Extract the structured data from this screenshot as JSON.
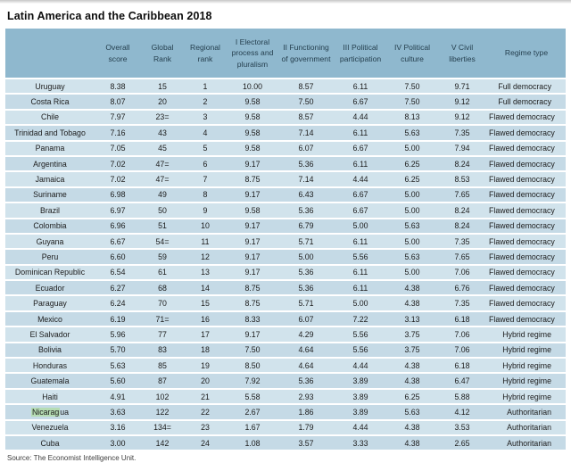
{
  "title": "Latin America and the Caribbean 2018",
  "source": "Source: The Economist Intelligence Unit.",
  "colors": {
    "header_bg": "#8fb8ce",
    "row_light": "#d1e3ec",
    "row_dark": "#c5dae6",
    "highlight_green": "#b5dcb3",
    "header_text": "#253f4e"
  },
  "highlight": {
    "country": "Nicaragua",
    "highlighted_text": "Nicarag"
  },
  "chart_data": {
    "type": "table",
    "columns": [
      "",
      "Overall score",
      "Global Rank",
      "Regional rank",
      "I Electoral process and pluralism",
      "II Functioning of government",
      "III Political participation",
      "IV Political culture",
      "V Civil liberties",
      "Regime type"
    ],
    "rows": [
      [
        "Uruguay",
        "8.38",
        "15",
        "1",
        "10.00",
        "8.57",
        "6.11",
        "7.50",
        "9.71",
        "Full democracy"
      ],
      [
        "Costa Rica",
        "8.07",
        "20",
        "2",
        "9.58",
        "7.50",
        "6.67",
        "7.50",
        "9.12",
        "Full democracy"
      ],
      [
        "Chile",
        "7.97",
        "23=",
        "3",
        "9.58",
        "8.57",
        "4.44",
        "8.13",
        "9.12",
        "Flawed democracy"
      ],
      [
        "Trinidad and Tobago",
        "7.16",
        "43",
        "4",
        "9.58",
        "7.14",
        "6.11",
        "5.63",
        "7.35",
        "Flawed democracy"
      ],
      [
        "Panama",
        "7.05",
        "45",
        "5",
        "9.58",
        "6.07",
        "6.67",
        "5.00",
        "7.94",
        "Flawed democracy"
      ],
      [
        "Argentina",
        "7.02",
        "47=",
        "6",
        "9.17",
        "5.36",
        "6.11",
        "6.25",
        "8.24",
        "Flawed democracy"
      ],
      [
        "Jamaica",
        "7.02",
        "47=",
        "7",
        "8.75",
        "7.14",
        "4.44",
        "6.25",
        "8.53",
        "Flawed democracy"
      ],
      [
        "Suriname",
        "6.98",
        "49",
        "8",
        "9.17",
        "6.43",
        "6.67",
        "5.00",
        "7.65",
        "Flawed democracy"
      ],
      [
        "Brazil",
        "6.97",
        "50",
        "9",
        "9.58",
        "5.36",
        "6.67",
        "5.00",
        "8.24",
        "Flawed democracy"
      ],
      [
        "Colombia",
        "6.96",
        "51",
        "10",
        "9.17",
        "6.79",
        "5.00",
        "5.63",
        "8.24",
        "Flawed democracy"
      ],
      [
        "Guyana",
        "6.67",
        "54=",
        "11",
        "9.17",
        "5.71",
        "6.11",
        "5.00",
        "7.35",
        "Flawed democracy"
      ],
      [
        "Peru",
        "6.60",
        "59",
        "12",
        "9.17",
        "5.00",
        "5.56",
        "5.63",
        "7.65",
        "Flawed democracy"
      ],
      [
        "Dominican Republic",
        "6.54",
        "61",
        "13",
        "9.17",
        "5.36",
        "6.11",
        "5.00",
        "7.06",
        "Flawed democracy"
      ],
      [
        "Ecuador",
        "6.27",
        "68",
        "14",
        "8.75",
        "5.36",
        "6.11",
        "4.38",
        "6.76",
        "Flawed democracy"
      ],
      [
        "Paraguay",
        "6.24",
        "70",
        "15",
        "8.75",
        "5.71",
        "5.00",
        "4.38",
        "7.35",
        "Flawed democracy"
      ],
      [
        "Mexico",
        "6.19",
        "71=",
        "16",
        "8.33",
        "6.07",
        "7.22",
        "3.13",
        "6.18",
        "Flawed democracy"
      ],
      [
        "El Salvador",
        "5.96",
        "77",
        "17",
        "9.17",
        "4.29",
        "5.56",
        "3.75",
        "7.06",
        "Hybrid regime"
      ],
      [
        "Bolivia",
        "5.70",
        "83",
        "18",
        "7.50",
        "4.64",
        "5.56",
        "3.75",
        "7.06",
        "Hybrid regime"
      ],
      [
        "Honduras",
        "5.63",
        "85",
        "19",
        "8.50",
        "4.64",
        "4.44",
        "4.38",
        "6.18",
        "Hybrid regime"
      ],
      [
        "Guatemala",
        "5.60",
        "87",
        "20",
        "7.92",
        "5.36",
        "3.89",
        "4.38",
        "6.47",
        "Hybrid regime"
      ],
      [
        "Haiti",
        "4.91",
        "102",
        "21",
        "5.58",
        "2.93",
        "3.89",
        "6.25",
        "5.88",
        "Hybrid regime"
      ],
      [
        "Nicaragua",
        "3.63",
        "122",
        "22",
        "2.67",
        "1.86",
        "3.89",
        "5.63",
        "4.12",
        "Authoritarian"
      ],
      [
        "Venezuela",
        "3.16",
        "134=",
        "23",
        "1.67",
        "1.79",
        "4.44",
        "4.38",
        "3.53",
        "Authoritarian"
      ],
      [
        "Cuba",
        "3.00",
        "142",
        "24",
        "1.08",
        "3.57",
        "3.33",
        "4.38",
        "2.65",
        "Authoritarian"
      ]
    ]
  }
}
